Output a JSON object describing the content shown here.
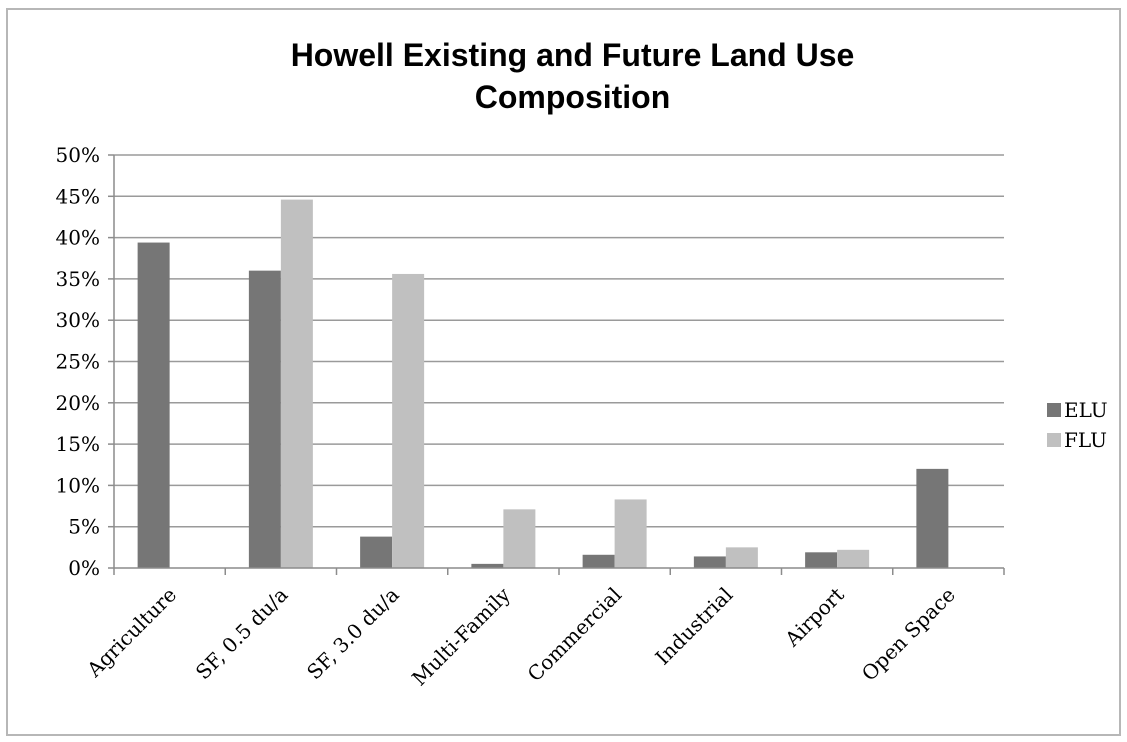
{
  "chart_data": {
    "type": "bar",
    "title": "Howell Existing and Future Land Use Composition",
    "title_lines": [
      "Howell Existing and Future Land Use",
      "Composition"
    ],
    "categories": [
      "Agriculture",
      "SF, 0.5 du/a",
      "SF, 3.0 du/a",
      "Multi-Family",
      "Commercial",
      "Industrial",
      "Airport",
      "Open Space"
    ],
    "series": [
      {
        "name": "ELU",
        "color": "#767676",
        "values": [
          39.4,
          36.0,
          3.8,
          0.5,
          1.6,
          1.4,
          1.9,
          12.0
        ]
      },
      {
        "name": "FLU",
        "color": "#c0c0c0",
        "values": [
          0,
          44.6,
          35.6,
          7.1,
          8.3,
          2.5,
          2.2,
          0
        ]
      }
    ],
    "ylim": [
      0,
      50
    ],
    "yticks": [
      "0%",
      "5%",
      "10%",
      "15%",
      "20%",
      "25%",
      "30%",
      "35%",
      "40%",
      "45%",
      "50%"
    ],
    "grid": true,
    "legend_position": "right"
  }
}
